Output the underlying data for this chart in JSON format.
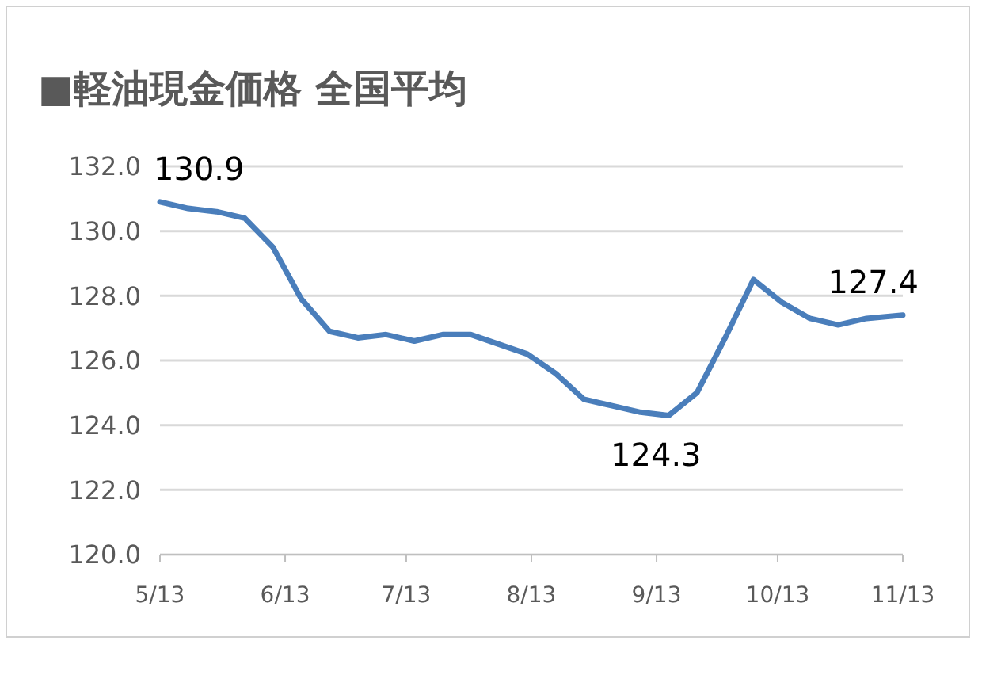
{
  "chart_data": {
    "type": "line",
    "title": "■軽油現金価格 全国平均",
    "x": [
      "--05-13",
      "--05-20",
      "--05-27",
      "--06-03",
      "--06-10",
      "--06-17",
      "--06-24",
      "--07-01",
      "--07-08",
      "--07-15",
      "--07-22",
      "--07-29",
      "--08-05",
      "--08-12",
      "--08-19",
      "--08-26",
      "--09-02",
      "--09-09",
      "--09-16",
      "--09-23",
      "--09-30",
      "--10-07",
      "--10-14",
      "--10-21",
      "--10-28",
      "--11-04",
      "--11-13"
    ],
    "series": [
      {
        "color": "#4a7ebb",
        "values": [
          130.9,
          130.7,
          130.6,
          130.4,
          129.5,
          127.9,
          126.9,
          126.7,
          126.8,
          126.6,
          126.8,
          126.8,
          126.5,
          126.2,
          125.6,
          124.8,
          124.6,
          124.4,
          124.3,
          125.0,
          126.7,
          128.5,
          127.8,
          127.3,
          127.1,
          127.3,
          127.4
        ],
        "value_labels": [
          "130.9",
          null,
          null,
          null,
          null,
          null,
          null,
          null,
          null,
          null,
          null,
          null,
          null,
          null,
          null,
          null,
          null,
          null,
          "124.3",
          null,
          null,
          null,
          null,
          null,
          null,
          null,
          "127.4"
        ]
      }
    ],
    "xlim": [
      "--05-13",
      "--11-13"
    ],
    "xticks": [
      {
        "value": "--05-13",
        "label": "5/13"
      },
      {
        "value": "--06-13",
        "label": "6/13"
      },
      {
        "value": "--07-13",
        "label": "7/13"
      },
      {
        "value": "--08-13",
        "label": "8/13"
      },
      {
        "value": "--09-13",
        "label": "9/13"
      },
      {
        "value": "--10-13",
        "label": "10/13"
      },
      {
        "value": "--11-13",
        "label": "11/13"
      }
    ],
    "ylim": [
      120,
      132
    ],
    "yticks": [
      {
        "value": 120,
        "label": "120.0"
      },
      {
        "value": 122,
        "label": "122.0"
      },
      {
        "value": 124,
        "label": "124.0"
      },
      {
        "value": 126,
        "label": "126.0"
      },
      {
        "value": 128,
        "label": "128.0"
      },
      {
        "value": 130,
        "label": "130.0"
      },
      {
        "value": 132,
        "label": "132.0"
      }
    ],
    "grid": "y",
    "marker": "none",
    "line_style": "solid"
  }
}
